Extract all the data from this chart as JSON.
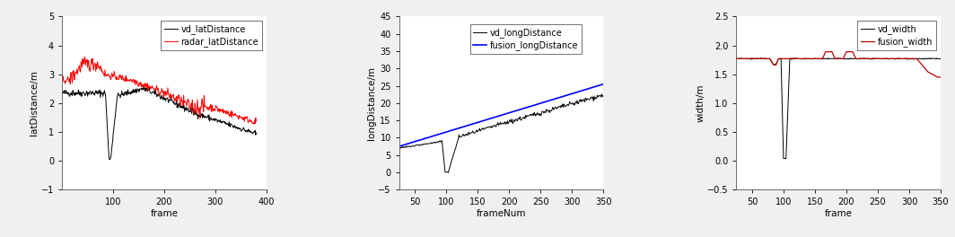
{
  "subplot1": {
    "xlabel": "frame",
    "ylabel": "latDistance/m",
    "xlim": [
      0,
      400
    ],
    "ylim": [
      -1,
      5
    ],
    "xticks": [
      100,
      200,
      300,
      400
    ],
    "yticks": [
      -1,
      0,
      1,
      2,
      3,
      4,
      5
    ],
    "legend": [
      "vd_latDistance",
      "radar_latDistance"
    ],
    "line_colors": [
      "#000000",
      "#ff0000"
    ]
  },
  "subplot2": {
    "xlabel": "frameNum",
    "ylabel": "longDistance/m",
    "xlim": [
      25,
      350
    ],
    "ylim": [
      -5,
      45
    ],
    "xticks": [
      50,
      100,
      150,
      200,
      250,
      300,
      350
    ],
    "yticks": [
      -5,
      0,
      5,
      10,
      15,
      20,
      25,
      30,
      35,
      40,
      45
    ],
    "legend": [
      "vd_longDistance",
      "fusion_longDistance"
    ],
    "line_colors": [
      "#000000",
      "#0000ff"
    ]
  },
  "subplot3": {
    "xlabel": "frame",
    "ylabel": "width/m",
    "xlim": [
      25,
      350
    ],
    "ylim": [
      -0.5,
      2.5
    ],
    "xticks": [
      50,
      100,
      150,
      200,
      250,
      300,
      350
    ],
    "yticks": [
      -0.5,
      0.0,
      0.5,
      1.0,
      1.5,
      2.0,
      2.5
    ],
    "legend": [
      "vd_width",
      "fusion_width"
    ],
    "line_colors": [
      "#000000",
      "#bb0000"
    ]
  },
  "fig_bg": "#f0f0f0",
  "axes_bg": "#ffffff",
  "font_size": 7.5
}
